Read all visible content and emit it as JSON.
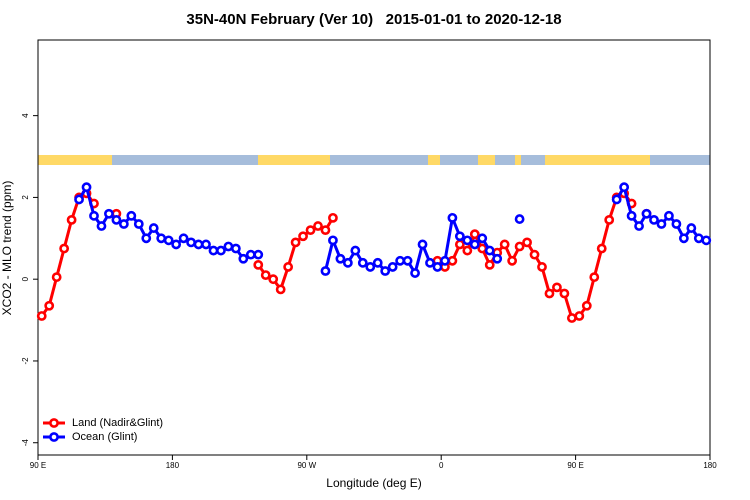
{
  "chart_data": {
    "type": "line",
    "title": "35N-40N February (Ver 10)   2015-01-01 to 2020-12-18",
    "x_label": "Longitude (deg E)",
    "y_label": "XCO2 - MLO trend (ppm)",
    "x": [
      92.5,
      97.5,
      102.5,
      107.5,
      112.5,
      117.5,
      122.5,
      127.5,
      132.5,
      137.5,
      142.5,
      147.5,
      152.5,
      157.5,
      162.5,
      167.5,
      172.5,
      177.5,
      182.5,
      187.5,
      192.5,
      197.5,
      202.5,
      207.5,
      212.5,
      217.5,
      222.5,
      227.5,
      232.5,
      237.5,
      242.5,
      247.5,
      252.5,
      257.5,
      262.5,
      267.5,
      272.5,
      277.5,
      282.5,
      287.5,
      292.5,
      297.5,
      302.5,
      307.5,
      312.5,
      317.5,
      322.5,
      327.5,
      332.5,
      337.5,
      342.5,
      347.5,
      352.5,
      357.5,
      362.5,
      367.5,
      372.5,
      377.5,
      382.5,
      387.5,
      392.5,
      397.5,
      402.5,
      407.5,
      412.5,
      417.5,
      422.5,
      427.5,
      432.5,
      437.5,
      442.5,
      447.5,
      452.5,
      457.5,
      462.5,
      467.5,
      472.5,
      477.5,
      482.5,
      487.5,
      492.5,
      497.5,
      502.5,
      507.5,
      512.5,
      517.5,
      522.5,
      527.5,
      532.5,
      537.5
    ],
    "series": [
      {
        "name": "Land (Nadir&Glint)",
        "color": "#ff0000",
        "values": [
          -0.9,
          -0.65,
          0.05,
          0.75,
          1.45,
          2.0,
          2.1,
          1.85,
          null,
          null,
          1.6,
          null,
          null,
          null,
          null,
          null,
          null,
          null,
          null,
          null,
          null,
          null,
          null,
          null,
          null,
          null,
          null,
          null,
          null,
          0.35,
          0.1,
          0.0,
          -0.25,
          0.3,
          0.9,
          1.05,
          1.2,
          1.3,
          1.2,
          1.5,
          null,
          null,
          null,
          null,
          null,
          null,
          null,
          null,
          null,
          null,
          null,
          null,
          null,
          0.45,
          0.3,
          0.45,
          0.85,
          0.7,
          1.1,
          0.75,
          0.35,
          0.65,
          0.85,
          0.45,
          0.8,
          0.9,
          0.6,
          0.3,
          -0.35,
          -0.2,
          -0.35,
          -0.95,
          -0.9,
          -0.65,
          0.05,
          0.75,
          1.45,
          2.0,
          2.1,
          1.85,
          null,
          1.6,
          null,
          null,
          null,
          null,
          null,
          null,
          null,
          null
        ]
      },
      {
        "name": "Ocean (Glint)",
        "color": "#0000ff",
        "values": [
          null,
          null,
          null,
          null,
          null,
          1.95,
          2.25,
          1.55,
          1.3,
          1.6,
          1.45,
          1.35,
          1.55,
          1.35,
          1.0,
          1.25,
          1.0,
          0.95,
          0.85,
          1.0,
          0.9,
          0.85,
          0.85,
          0.7,
          0.7,
          0.8,
          0.75,
          0.5,
          0.6,
          0.6,
          null,
          null,
          null,
          null,
          null,
          null,
          null,
          null,
          0.2,
          0.95,
          0.5,
          0.4,
          0.7,
          0.4,
          0.3,
          0.4,
          0.2,
          0.3,
          0.45,
          0.45,
          0.15,
          0.85,
          0.4,
          0.3,
          0.45,
          1.5,
          1.05,
          0.95,
          0.85,
          1.0,
          0.7,
          0.5,
          null,
          null,
          1.47,
          null,
          null,
          null,
          null,
          null,
          null,
          null,
          null,
          null,
          null,
          null,
          null,
          1.95,
          2.25,
          1.55,
          1.3,
          1.6,
          1.45,
          1.35,
          1.55,
          1.35,
          1.0,
          1.25,
          1.0,
          0.95
        ]
      }
    ],
    "xlim": [
      90,
      540
    ],
    "xticks": [
      {
        "value": 90,
        "label": "90 E"
      },
      180,
      {
        "value": 270,
        "label": "90 W"
      },
      {
        "value": 360,
        "label": "0"
      },
      {
        "value": 450,
        "label": "90 E"
      },
      {
        "value": 540,
        "label": "180"
      }
    ],
    "ylim": [
      -4.3,
      5.85
    ],
    "yticks": [
      -4,
      -2,
      0,
      2,
      4
    ],
    "legend": "bottomleft"
  }
}
